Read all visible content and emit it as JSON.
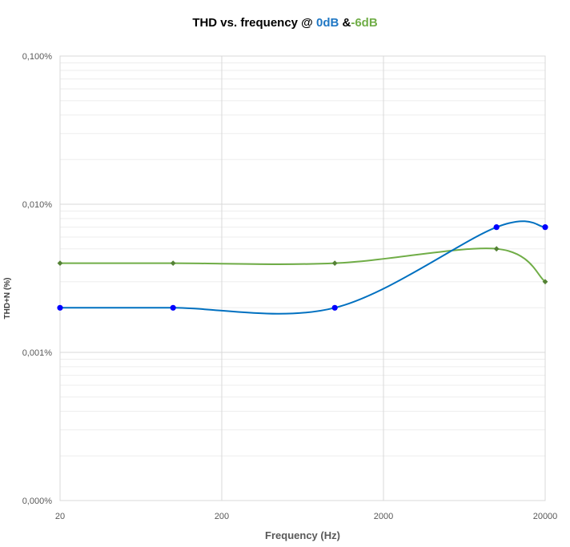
{
  "chart_data": {
    "type": "line",
    "title_parts": [
      {
        "text": "THD vs. frequency @ ",
        "color": "#000000"
      },
      {
        "text": "0dB",
        "color": "#1F77C4"
      },
      {
        "text": " &",
        "color": "#000000"
      },
      {
        "text": "-6dB",
        "color": "#70AD47"
      }
    ],
    "xlabel": "Frequency (Hz)",
    "ylabel": "THD+N (%)",
    "x_scale": "log",
    "y_scale": "log",
    "xlim": [
      20,
      20000
    ],
    "ylim": [
      0.0001,
      0.1
    ],
    "x_ticks": [
      20,
      200,
      2000,
      20000
    ],
    "x_tick_labels": [
      "20",
      "200",
      "2000",
      "20000"
    ],
    "y_ticks": [
      0.0001,
      0.001,
      0.01,
      0.1
    ],
    "y_tick_labels": [
      "0,000%",
      "0,001%",
      "0,010%",
      "0,100%"
    ],
    "grid": true,
    "series": [
      {
        "name": "0dB",
        "color": "#0070C0",
        "marker_color": "#0000FF",
        "marker": "circle",
        "x": [
          20,
          100,
          1000,
          10000,
          20000
        ],
        "y": [
          0.002,
          0.002,
          0.002,
          0.007,
          0.007
        ]
      },
      {
        "name": "-6dB",
        "color": "#70AD47",
        "marker_color": "#548235",
        "marker": "diamond",
        "x": [
          20,
          100,
          1000,
          10000,
          20000
        ],
        "y": [
          0.004,
          0.004,
          0.004,
          0.005,
          0.003
        ]
      }
    ]
  }
}
